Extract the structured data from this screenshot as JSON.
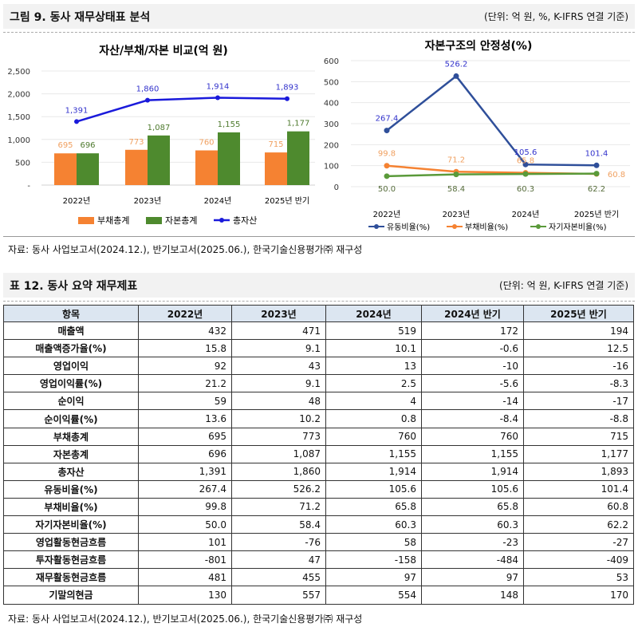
{
  "figure": {
    "title": "그림 9. 동사 재무상태표 분석",
    "unit": "(단위: 억 원, %, K-IFRS 연결 기준)"
  },
  "source": "자료: 동사 사업보고서(2024.12.), 반기보고서(2025.06.), 한국기술신용평가㈜ 재구성",
  "table_section": {
    "title": "표 12. 동사 요약 재무제표",
    "unit": "(단위: 억 원, K-IFRS 연결 기준)"
  },
  "chart_data": [
    {
      "type": "bar",
      "title": "자산/부채/자본 비교(억 원)",
      "categories": [
        "2022년",
        "2023년",
        "2024년",
        "2025년 반기"
      ],
      "ylim": [
        0,
        2500
      ],
      "yticks": [
        "-",
        "500",
        "1,000",
        "1,500",
        "2,000",
        "2,500"
      ],
      "grid": true,
      "legend": "bottom",
      "series": [
        {
          "name": "부채총계",
          "kind": "bar",
          "color": "#f58232",
          "values": [
            695,
            773,
            760,
            715
          ],
          "labels": [
            "695",
            "773",
            "760",
            "715"
          ]
        },
        {
          "name": "자본총계",
          "kind": "bar",
          "color": "#4e8a2e",
          "values": [
            696,
            1087,
            1155,
            1177
          ],
          "labels": [
            "696",
            "1,087",
            "1,155",
            "1,177"
          ]
        },
        {
          "name": "총자산",
          "kind": "line",
          "color": "#1a1adb",
          "values": [
            1391,
            1860,
            1914,
            1893
          ],
          "labels": [
            "1,391",
            "1,860",
            "1,914",
            "1,893"
          ]
        }
      ]
    },
    {
      "type": "line",
      "title": "자본구조의 안정성(%)",
      "categories": [
        "2022년",
        "2023년",
        "2024년",
        "2025년 반기"
      ],
      "ylim": [
        0,
        600
      ],
      "yticks": [
        "0",
        "100",
        "200",
        "300",
        "400",
        "500",
        "600"
      ],
      "grid": true,
      "legend": "bottom",
      "series": [
        {
          "name": "유동비율(%)",
          "color": "#2f4f9a",
          "label_color": "#3333cc",
          "values": [
            267.4,
            526.2,
            105.6,
            101.4
          ]
        },
        {
          "name": "부채비율(%)",
          "color": "#f58232",
          "label_color": "#f0a060",
          "values": [
            99.8,
            71.2,
            65.8,
            60.8
          ]
        },
        {
          "name": "자기자본비율(%)",
          "color": "#5a9a3a",
          "label_color": "#556b3a",
          "values": [
            50.0,
            58.4,
            60.3,
            62.2
          ]
        }
      ]
    }
  ],
  "table": {
    "headers": [
      "항목",
      "2022년",
      "2023년",
      "2024년",
      "2024년 반기",
      "2025년 반기"
    ],
    "rows": [
      [
        "매출액",
        "432",
        "471",
        "519",
        "172",
        "194"
      ],
      [
        "매출액증가율(%)",
        "15.8",
        "9.1",
        "10.1",
        "-0.6",
        "12.5"
      ],
      [
        "영업이익",
        "92",
        "43",
        "13",
        "-10",
        "-16"
      ],
      [
        "영업이익률(%)",
        "21.2",
        "9.1",
        "2.5",
        "-5.6",
        "-8.3"
      ],
      [
        "순이익",
        "59",
        "48",
        "4",
        "-14",
        "-17"
      ],
      [
        "순이익률(%)",
        "13.6",
        "10.2",
        "0.8",
        "-8.4",
        "-8.8"
      ],
      [
        "부채총계",
        "695",
        "773",
        "760",
        "760",
        "715"
      ],
      [
        "자본총계",
        "696",
        "1,087",
        "1,155",
        "1,155",
        "1,177"
      ],
      [
        "총자산",
        "1,391",
        "1,860",
        "1,914",
        "1,914",
        "1,893"
      ],
      [
        "유동비율(%)",
        "267.4",
        "526.2",
        "105.6",
        "105.6",
        "101.4"
      ],
      [
        "부채비율(%)",
        "99.8",
        "71.2",
        "65.8",
        "65.8",
        "60.8"
      ],
      [
        "자기자본비율(%)",
        "50.0",
        "58.4",
        "60.3",
        "60.3",
        "62.2"
      ],
      [
        "영업활동현금흐름",
        "101",
        "-76",
        "58",
        "-23",
        "-27"
      ],
      [
        "투자활동현금흐름",
        "-801",
        "47",
        "-158",
        "-484",
        "-409"
      ],
      [
        "재무활동현금흐름",
        "481",
        "455",
        "97",
        "97",
        "53"
      ],
      [
        "기말의현금",
        "130",
        "557",
        "554",
        "148",
        "170"
      ]
    ]
  }
}
